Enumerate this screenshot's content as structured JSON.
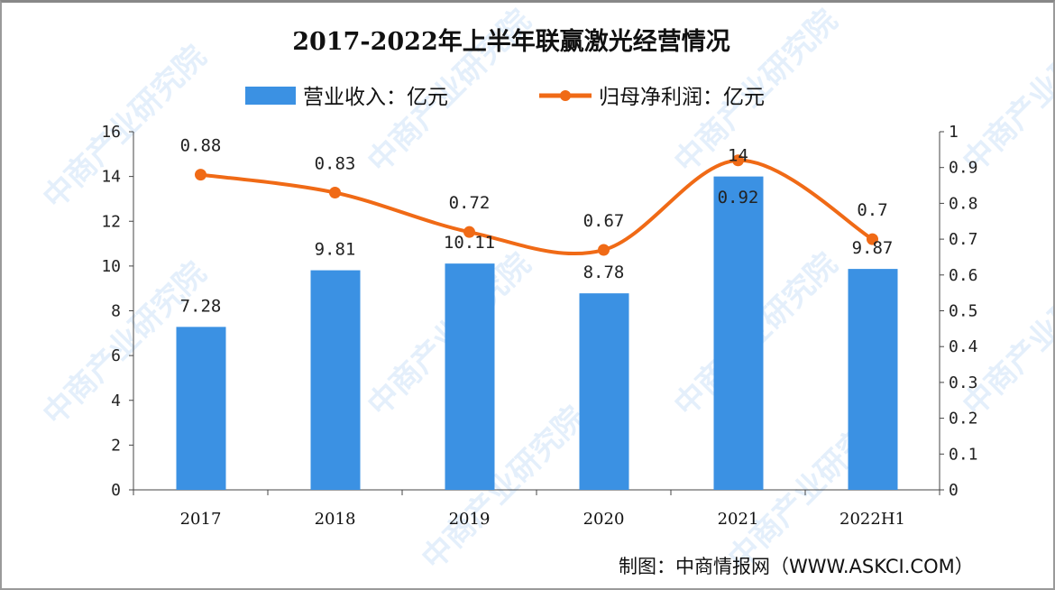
{
  "chart_data": {
    "type": "bar+line",
    "title": "2017-2022年上半年联赢激光经营情况",
    "categories": [
      "2017",
      "2018",
      "2019",
      "2020",
      "2021",
      "2022H1"
    ],
    "series": [
      {
        "name": "营业收入：亿元",
        "type": "bar",
        "axis": "left",
        "values": [
          7.28,
          9.81,
          10.11,
          8.78,
          14,
          9.87
        ],
        "color": "#3b91e3"
      },
      {
        "name": "归母净利润：亿元",
        "type": "line",
        "axis": "right",
        "smooth": true,
        "values": [
          0.88,
          0.83,
          0.72,
          0.67,
          0.92,
          0.7
        ],
        "color": "#f06a16"
      }
    ],
    "y_left": {
      "range": [
        0,
        16
      ],
      "ticks": [
        "0",
        "2",
        "4",
        "6",
        "8",
        "10",
        "12",
        "14",
        "16"
      ]
    },
    "y_right": {
      "range": [
        0,
        1
      ],
      "ticks": [
        "0",
        "0.1",
        "0.2",
        "0.3",
        "0.4",
        "0.5",
        "0.6",
        "0.7",
        "0.8",
        "0.9",
        "1"
      ]
    },
    "legend_placement": "top-center",
    "grid": false
  },
  "source": "制图：中商情报网（WWW.ASKCI.COM）",
  "watermark": "中商产业研究院"
}
